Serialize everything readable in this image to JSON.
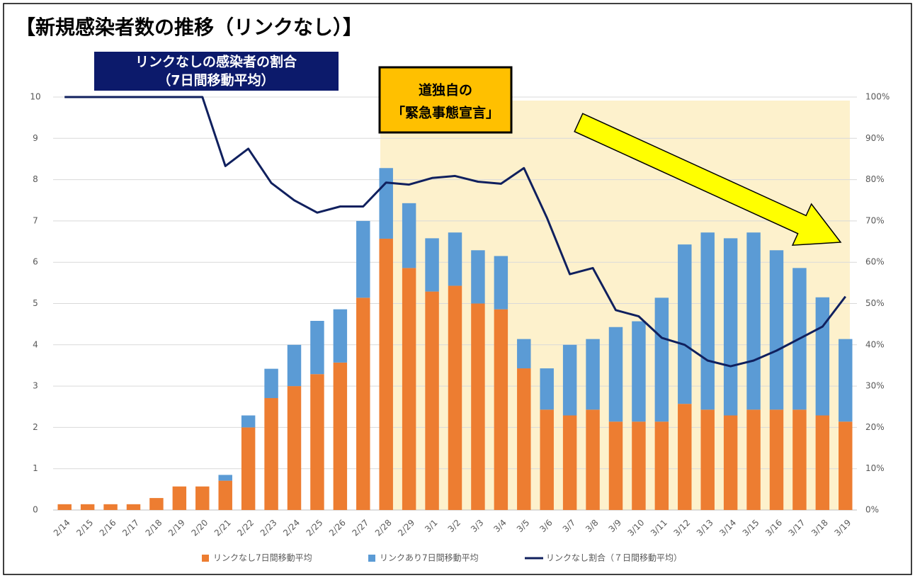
{
  "chart_data": {
    "type": "bar",
    "stacked": true,
    "title": "【新規感染者数の推移（リンクなし）】",
    "annotations": [
      "リンクなしの感染者の割合",
      "（7日間移動平均）",
      "道独自の",
      "「緊急事態宣言」"
    ],
    "categories": [
      "2/14",
      "2/15",
      "2/16",
      "2/17",
      "2/18",
      "2/19",
      "2/20",
      "2/21",
      "2/22",
      "2/23",
      "2/24",
      "2/25",
      "2/26",
      "2/27",
      "2/28",
      "2/29",
      "3/1",
      "3/2",
      "3/3",
      "3/4",
      "3/5",
      "3/6",
      "3/7",
      "3/8",
      "3/9",
      "3/10",
      "3/11",
      "3/12",
      "3/13",
      "3/14",
      "3/15",
      "3/16",
      "3/17",
      "3/18",
      "3/19"
    ],
    "series": [
      {
        "name": "リンクなし7日間移動平均",
        "type": "bar",
        "color": "#ed7d31",
        "values": [
          0.14,
          0.14,
          0.14,
          0.14,
          0.29,
          0.57,
          0.57,
          0.71,
          2.0,
          2.71,
          3.0,
          3.29,
          3.57,
          5.14,
          6.57,
          5.86,
          5.29,
          5.43,
          5.0,
          4.86,
          3.43,
          2.43,
          2.29,
          2.43,
          2.14,
          2.14,
          2.14,
          2.57,
          2.43,
          2.29,
          2.43,
          2.43,
          2.43,
          2.29,
          2.14
        ]
      },
      {
        "name": "リンクあり7日間移動平均",
        "type": "bar",
        "color": "#5b9bd5",
        "values": [
          0,
          0,
          0,
          0,
          0,
          0,
          0,
          0.14,
          0.29,
          0.71,
          1.0,
          1.29,
          1.29,
          1.86,
          1.71,
          1.57,
          1.29,
          1.29,
          1.29,
          1.29,
          0.71,
          1.0,
          1.71,
          1.71,
          2.29,
          2.43,
          3.0,
          3.86,
          4.29,
          4.29,
          4.29,
          3.86,
          3.43,
          2.86,
          2.0
        ]
      },
      {
        "name": "リンクなし割合（７日間移動平均）",
        "type": "line",
        "axis": "y2",
        "color": "#10205e",
        "values": [
          100,
          100,
          100,
          100,
          100,
          100,
          100,
          83.3,
          87.5,
          79.2,
          75,
          72,
          73.5,
          73.5,
          79.3,
          78.8,
          80.4,
          80.9,
          79.5,
          79,
          82.8,
          70.8,
          57.1,
          58.6,
          48.4,
          46.9,
          41.7,
          40,
          36.2,
          34.8,
          36.2,
          38.6,
          41.5,
          44.4,
          51.7
        ]
      }
    ],
    "ylim": [
      0,
      10
    ],
    "yticks": [
      0,
      1,
      2,
      3,
      4,
      5,
      6,
      7,
      8,
      9,
      10
    ],
    "y2lim": [
      0,
      100
    ],
    "y2ticks": [
      {
        "value": 0,
        "label": "0%"
      },
      {
        "value": 10,
        "label": "10%"
      },
      {
        "value": 20,
        "label": "20%"
      },
      {
        "value": 30,
        "label": "30%"
      },
      {
        "value": 40,
        "label": "40%"
      },
      {
        "value": 50,
        "label": "50%"
      },
      {
        "value": 60,
        "label": "60%"
      },
      {
        "value": 70,
        "label": "70%"
      },
      {
        "value": 80,
        "label": "80%"
      },
      {
        "value": 90,
        "label": "90%"
      },
      {
        "value": 100,
        "label": "100%"
      }
    ],
    "grid": true,
    "legend": "bottom"
  }
}
